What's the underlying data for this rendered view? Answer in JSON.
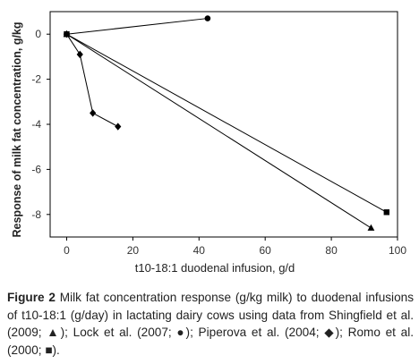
{
  "chart_data": {
    "type": "line",
    "xlabel": "t10-18:1 duodenal  infusion, g/d",
    "ylabel": "Response of milk fat concentration, g/kg",
    "xlim": [
      -5,
      100
    ],
    "ylim": [
      -9,
      1
    ],
    "x_ticks": [
      "0",
      "20",
      "40",
      "60",
      "80",
      "100"
    ],
    "y_ticks": [
      "0",
      "-2",
      "-4",
      "-6",
      "-8"
    ],
    "x_tick_values": [
      0,
      20,
      40,
      60,
      80,
      100
    ],
    "y_tick_values": [
      0,
      -2,
      -4,
      -6,
      -8
    ],
    "grid": false,
    "series": [
      {
        "marker": "triangle",
        "x": [
          0,
          92
        ],
        "y": [
          0,
          -8.6
        ]
      },
      {
        "marker": "circle",
        "x": [
          0,
          42.6
        ],
        "y": [
          0,
          0.7
        ]
      },
      {
        "marker": "diamond",
        "x": [
          0,
          4,
          7.9,
          15.5
        ],
        "y": [
          0,
          -0.9,
          -3.5,
          -4.1
        ]
      },
      {
        "marker": "square",
        "x": [
          0,
          96.7
        ],
        "y": [
          0,
          -7.9
        ]
      }
    ]
  },
  "caption": {
    "label": "Figure 2",
    "text": " Milk fat concentration response (g/kg milk) to duodenal infusions of t10-18:1 (g/day) in lactating dairy cows using data from Shingfield et al. (2009; ▲); Lock et al. (2007; ●); Piperova et al. (2004; ◆); Romo et al. (2000; ■)."
  }
}
